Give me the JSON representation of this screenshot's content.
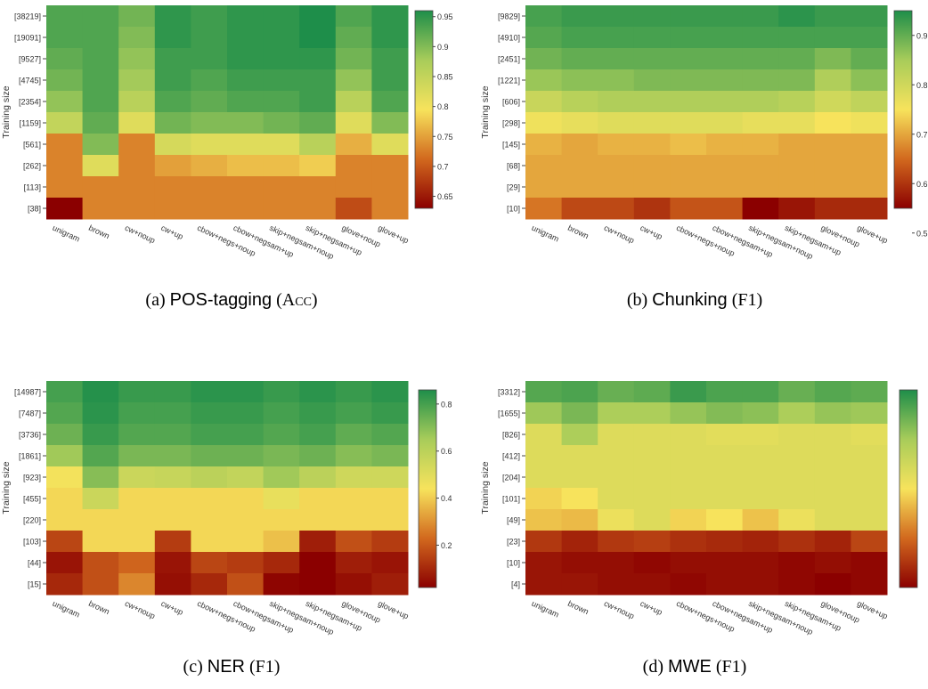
{
  "colors": {
    "low": "#8b0000",
    "mid_low": "#d2691e",
    "mid": "#f7e35c",
    "mid_high": "#a8cc5a",
    "high": "#1e8e4a"
  },
  "common": {
    "ylabel": "Training size",
    "methods": [
      "unigram",
      "brown",
      "cw+noup",
      "cw+up",
      "cbow+negs+noup",
      "cbow+negsam+up",
      "skip+negsam+noup",
      "skip+negsam+up",
      "glove+noup",
      "glove+up"
    ]
  },
  "chart_data": [
    {
      "type": "heatmap",
      "id": "a",
      "caption": {
        "letter": "(a)",
        "name": "POS-tagging",
        "metric": "Acc"
      },
      "rows": [
        "[38219]",
        "[19091]",
        "[9527]",
        "[4745]",
        "[2354]",
        "[1159]",
        "[561]",
        "[262]",
        "[113]",
        "[38]"
      ],
      "colorbar_ticks": [
        0.95,
        0.9,
        0.85,
        0.8,
        0.75,
        0.7,
        0.65
      ],
      "vmin": 0.63,
      "vmax": 0.96,
      "values": [
        [
          0.93,
          0.93,
          0.91,
          0.95,
          0.94,
          0.95,
          0.95,
          0.96,
          0.93,
          0.95
        ],
        [
          0.93,
          0.93,
          0.9,
          0.95,
          0.94,
          0.95,
          0.95,
          0.96,
          0.92,
          0.95
        ],
        [
          0.92,
          0.93,
          0.89,
          0.94,
          0.94,
          0.95,
          0.95,
          0.95,
          0.91,
          0.94
        ],
        [
          0.91,
          0.93,
          0.88,
          0.94,
          0.93,
          0.94,
          0.94,
          0.94,
          0.89,
          0.94
        ],
        [
          0.89,
          0.93,
          0.86,
          0.93,
          0.92,
          0.93,
          0.93,
          0.94,
          0.86,
          0.93
        ],
        [
          0.85,
          0.92,
          0.82,
          0.91,
          0.9,
          0.9,
          0.91,
          0.92,
          0.82,
          0.9
        ],
        [
          0.73,
          0.9,
          0.73,
          0.83,
          0.82,
          0.82,
          0.82,
          0.86,
          0.76,
          0.82
        ],
        [
          0.73,
          0.82,
          0.73,
          0.75,
          0.76,
          0.77,
          0.77,
          0.78,
          0.73,
          0.73
        ],
        [
          0.73,
          0.73,
          0.73,
          0.73,
          0.73,
          0.73,
          0.73,
          0.73,
          0.73,
          0.73
        ],
        [
          0.63,
          0.73,
          0.73,
          0.73,
          0.73,
          0.73,
          0.73,
          0.73,
          0.69,
          0.73
        ]
      ]
    },
    {
      "type": "heatmap",
      "id": "b",
      "caption": {
        "letter": "(b)",
        "name": "Chunking",
        "metric": "F1"
      },
      "rows": [
        "[9829]",
        "[4910]",
        "[2451]",
        "[1221]",
        "[606]",
        "[298]",
        "[145]",
        "[68]",
        "[29]",
        "[10]"
      ],
      "colorbar_ticks": [
        0.9,
        0.8,
        0.7,
        0.6,
        0.5
      ],
      "vmin": 0.55,
      "vmax": 0.95,
      "values": [
        [
          0.92,
          0.93,
          0.93,
          0.93,
          0.93,
          0.93,
          0.93,
          0.94,
          0.93,
          0.93
        ],
        [
          0.91,
          0.92,
          0.92,
          0.92,
          0.92,
          0.92,
          0.92,
          0.92,
          0.92,
          0.92
        ],
        [
          0.89,
          0.9,
          0.9,
          0.9,
          0.9,
          0.9,
          0.9,
          0.9,
          0.88,
          0.9
        ],
        [
          0.86,
          0.87,
          0.87,
          0.88,
          0.88,
          0.88,
          0.88,
          0.88,
          0.84,
          0.87
        ],
        [
          0.81,
          0.83,
          0.84,
          0.84,
          0.84,
          0.84,
          0.84,
          0.83,
          0.8,
          0.82
        ],
        [
          0.76,
          0.77,
          0.78,
          0.78,
          0.78,
          0.78,
          0.77,
          0.77,
          0.75,
          0.76
        ],
        [
          0.71,
          0.7,
          0.71,
          0.71,
          0.72,
          0.71,
          0.71,
          0.7,
          0.7,
          0.7
        ],
        [
          0.7,
          0.7,
          0.7,
          0.7,
          0.7,
          0.7,
          0.7,
          0.7,
          0.7,
          0.7
        ],
        [
          0.7,
          0.7,
          0.7,
          0.7,
          0.7,
          0.7,
          0.7,
          0.7,
          0.7,
          0.7
        ],
        [
          0.66,
          0.62,
          0.62,
          0.6,
          0.63,
          0.63,
          0.55,
          0.57,
          0.59,
          0.59
        ]
      ]
    },
    {
      "type": "heatmap",
      "id": "c",
      "caption": {
        "letter": "(c)",
        "name": "NER",
        "metric": "F1"
      },
      "rows": [
        "[14987]",
        "[7487]",
        "[3736]",
        "[1861]",
        "[923]",
        "[455]",
        "[220]",
        "[103]",
        "[44]",
        "[15]"
      ],
      "colorbar_ticks": [
        0.8,
        0.6,
        0.4,
        0.2
      ],
      "vmin": 0.02,
      "vmax": 0.86,
      "values": [
        [
          0.8,
          0.85,
          0.82,
          0.82,
          0.84,
          0.84,
          0.82,
          0.84,
          0.82,
          0.84
        ],
        [
          0.78,
          0.84,
          0.8,
          0.8,
          0.82,
          0.82,
          0.8,
          0.82,
          0.8,
          0.82
        ],
        [
          0.74,
          0.82,
          0.78,
          0.78,
          0.8,
          0.8,
          0.78,
          0.8,
          0.76,
          0.78
        ],
        [
          0.66,
          0.78,
          0.72,
          0.72,
          0.74,
          0.74,
          0.72,
          0.74,
          0.7,
          0.72
        ],
        [
          0.45,
          0.7,
          0.56,
          0.57,
          0.6,
          0.58,
          0.66,
          0.6,
          0.55,
          0.55
        ],
        [
          0.42,
          0.56,
          0.42,
          0.42,
          0.42,
          0.42,
          0.48,
          0.42,
          0.42,
          0.42
        ],
        [
          0.42,
          0.42,
          0.42,
          0.42,
          0.42,
          0.42,
          0.42,
          0.42,
          0.42,
          0.42
        ],
        [
          0.16,
          0.42,
          0.42,
          0.14,
          0.42,
          0.42,
          0.38,
          0.08,
          0.18,
          0.14
        ],
        [
          0.06,
          0.18,
          0.22,
          0.06,
          0.16,
          0.14,
          0.1,
          0.02,
          0.08,
          0.06
        ],
        [
          0.1,
          0.18,
          0.28,
          0.05,
          0.1,
          0.18,
          0.03,
          0.02,
          0.05,
          0.08
        ]
      ]
    },
    {
      "type": "heatmap",
      "id": "d",
      "caption": {
        "letter": "(d)",
        "name": "MWE",
        "metric": "F1"
      },
      "rows": [
        "[3312]",
        "[1655]",
        "[826]",
        "[412]",
        "[204]",
        "[101]",
        "[49]",
        "[23]",
        "[10]",
        "[4]"
      ],
      "colorbar_ticks": [],
      "vmin": 0.0,
      "vmax": 0.6,
      "values": [
        [
          0.54,
          0.55,
          0.52,
          0.53,
          0.57,
          0.55,
          0.55,
          0.52,
          0.54,
          0.53
        ],
        [
          0.46,
          0.5,
          0.44,
          0.44,
          0.47,
          0.49,
          0.48,
          0.44,
          0.47,
          0.46
        ],
        [
          0.35,
          0.44,
          0.35,
          0.35,
          0.35,
          0.34,
          0.34,
          0.35,
          0.35,
          0.34
        ],
        [
          0.35,
          0.35,
          0.35,
          0.35,
          0.35,
          0.35,
          0.35,
          0.35,
          0.35,
          0.35
        ],
        [
          0.35,
          0.35,
          0.35,
          0.35,
          0.35,
          0.35,
          0.35,
          0.35,
          0.35,
          0.35
        ],
        [
          0.28,
          0.3,
          0.35,
          0.35,
          0.35,
          0.35,
          0.35,
          0.35,
          0.35,
          0.35
        ],
        [
          0.26,
          0.25,
          0.32,
          0.35,
          0.28,
          0.3,
          0.26,
          0.32,
          0.35,
          0.35
        ],
        [
          0.08,
          0.05,
          0.08,
          0.09,
          0.07,
          0.06,
          0.05,
          0.07,
          0.05,
          0.1
        ],
        [
          0.03,
          0.02,
          0.02,
          0.01,
          0.02,
          0.02,
          0.02,
          0.01,
          0.02,
          0.01
        ],
        [
          0.03,
          0.03,
          0.02,
          0.02,
          0.01,
          0.02,
          0.02,
          0.01,
          0.0,
          0.01
        ]
      ]
    }
  ]
}
